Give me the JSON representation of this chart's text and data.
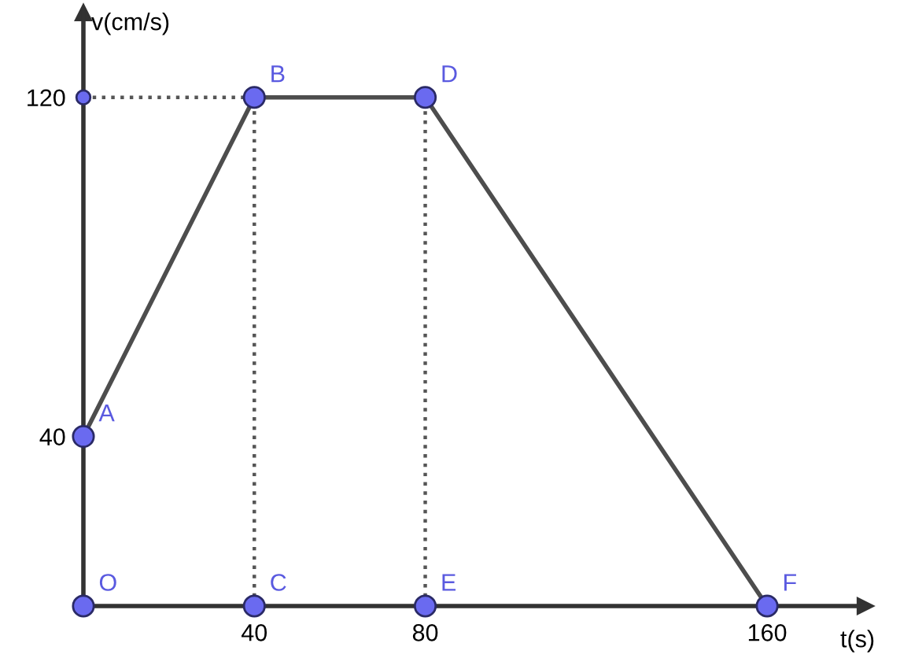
{
  "chart_data": {
    "type": "line",
    "xlabel": "t(s)",
    "ylabel": "v(cm/s)",
    "xlim": [
      0,
      183
    ],
    "ylim": [
      0,
      140
    ],
    "xticks": [
      40,
      80,
      160
    ],
    "yticks": [
      40,
      120
    ],
    "grid": false,
    "series": [
      {
        "line_style": "dotted",
        "color": "#555555",
        "x": [
          0,
          40
        ],
        "values": [
          120,
          120
        ]
      },
      {
        "line_style": "dotted",
        "color": "#555555",
        "x": [
          40,
          40
        ],
        "values": [
          0,
          120
        ]
      },
      {
        "line_style": "dotted",
        "color": "#555555",
        "x": [
          80,
          80
        ],
        "values": [
          0,
          120
        ]
      },
      {
        "line_style": "solid",
        "color": "#4d4d4d",
        "x": [
          0,
          40,
          80,
          160
        ],
        "values": [
          40,
          120,
          120,
          0
        ]
      },
      {
        "type": "scatter",
        "marker": "circle",
        "color": "#6a6af0",
        "x": [
          0,
          0,
          40,
          40,
          80,
          80,
          160,
          0
        ],
        "values": [
          0,
          40,
          120,
          0,
          120,
          0,
          0,
          120
        ],
        "sizes": [
          1,
          1,
          1,
          1,
          1,
          1,
          1,
          0.45
        ]
      }
    ],
    "annotations": [
      {
        "text": "O",
        "x": 0,
        "y": 0
      },
      {
        "text": "A",
        "x": 0,
        "y": 40
      },
      {
        "text": "B",
        "x": 40,
        "y": 120
      },
      {
        "text": "C",
        "x": 40,
        "y": 0
      },
      {
        "text": "D",
        "x": 80,
        "y": 120
      },
      {
        "text": "E",
        "x": 80,
        "y": 0
      },
      {
        "text": "F",
        "x": 160,
        "y": 0
      }
    ]
  }
}
